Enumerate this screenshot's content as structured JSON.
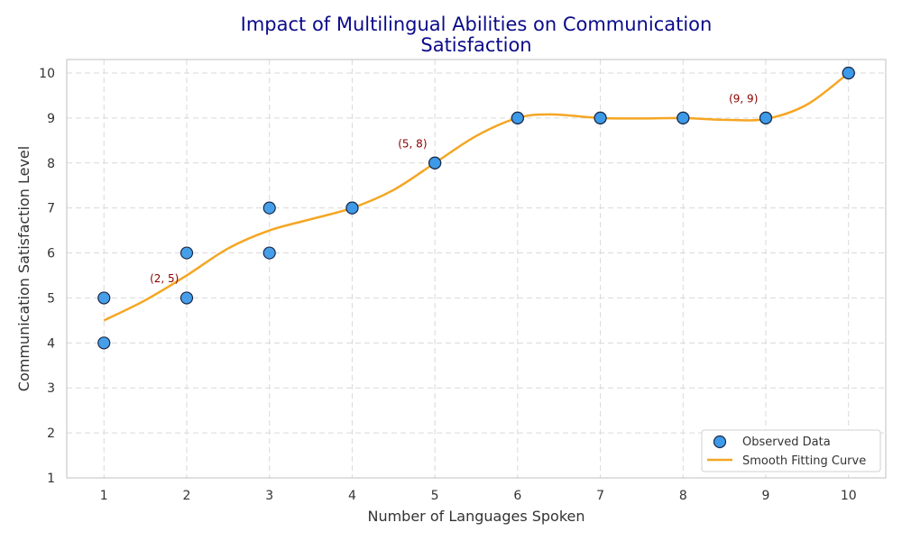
{
  "chart_data": {
    "type": "scatter",
    "title": "Impact of Multilingual Abilities on Communication Satisfaction",
    "title_lines": [
      "Impact of Multilingual Abilities on Communication",
      "Satisfaction"
    ],
    "xlabel": "Number of Languages Spoken",
    "ylabel": "Communication Satisfaction Level",
    "xlim": [
      0.55,
      10.45
    ],
    "ylim": [
      1,
      10.3
    ],
    "xticks": [
      1,
      2,
      3,
      4,
      5,
      6,
      7,
      8,
      9,
      10
    ],
    "yticks": [
      1,
      2,
      3,
      4,
      5,
      6,
      7,
      8,
      9,
      10
    ],
    "grid": true,
    "legend_position": "bottom-right",
    "series": [
      {
        "name": "Observed Data",
        "kind": "scatter",
        "color": "#3d9ae8",
        "edge_color": "#1a2a4a",
        "x": [
          1,
          1,
          2,
          2,
          3,
          3,
          4,
          4,
          5,
          5,
          6,
          6,
          7,
          7,
          8,
          8,
          9,
          9,
          10,
          10
        ],
        "y": [
          4,
          5,
          5,
          6,
          6,
          7,
          7,
          7,
          8,
          8,
          9,
          9,
          9,
          9,
          9,
          9,
          9,
          9,
          10,
          10
        ]
      },
      {
        "name": "Smooth Fitting Curve",
        "kind": "line",
        "color": "#f5a623",
        "x": [
          1,
          1.5,
          2,
          2.5,
          3,
          3.5,
          4,
          4.5,
          5,
          5.5,
          6,
          6.4,
          7,
          7.5,
          8,
          8.5,
          9,
          9.5,
          10
        ],
        "y": [
          4.5,
          4.95,
          5.5,
          6.1,
          6.5,
          6.75,
          7.0,
          7.4,
          8.0,
          8.6,
          9.0,
          9.08,
          9.0,
          8.99,
          9.0,
          8.96,
          8.98,
          9.3,
          10.0
        ]
      }
    ],
    "annotations": [
      {
        "text": "(2, 5)",
        "x": 1.73,
        "y": 5.35
      },
      {
        "text": "(5, 8)",
        "x": 4.73,
        "y": 8.35
      },
      {
        "text": "(9, 9)",
        "x": 8.73,
        "y": 9.35
      }
    ]
  }
}
